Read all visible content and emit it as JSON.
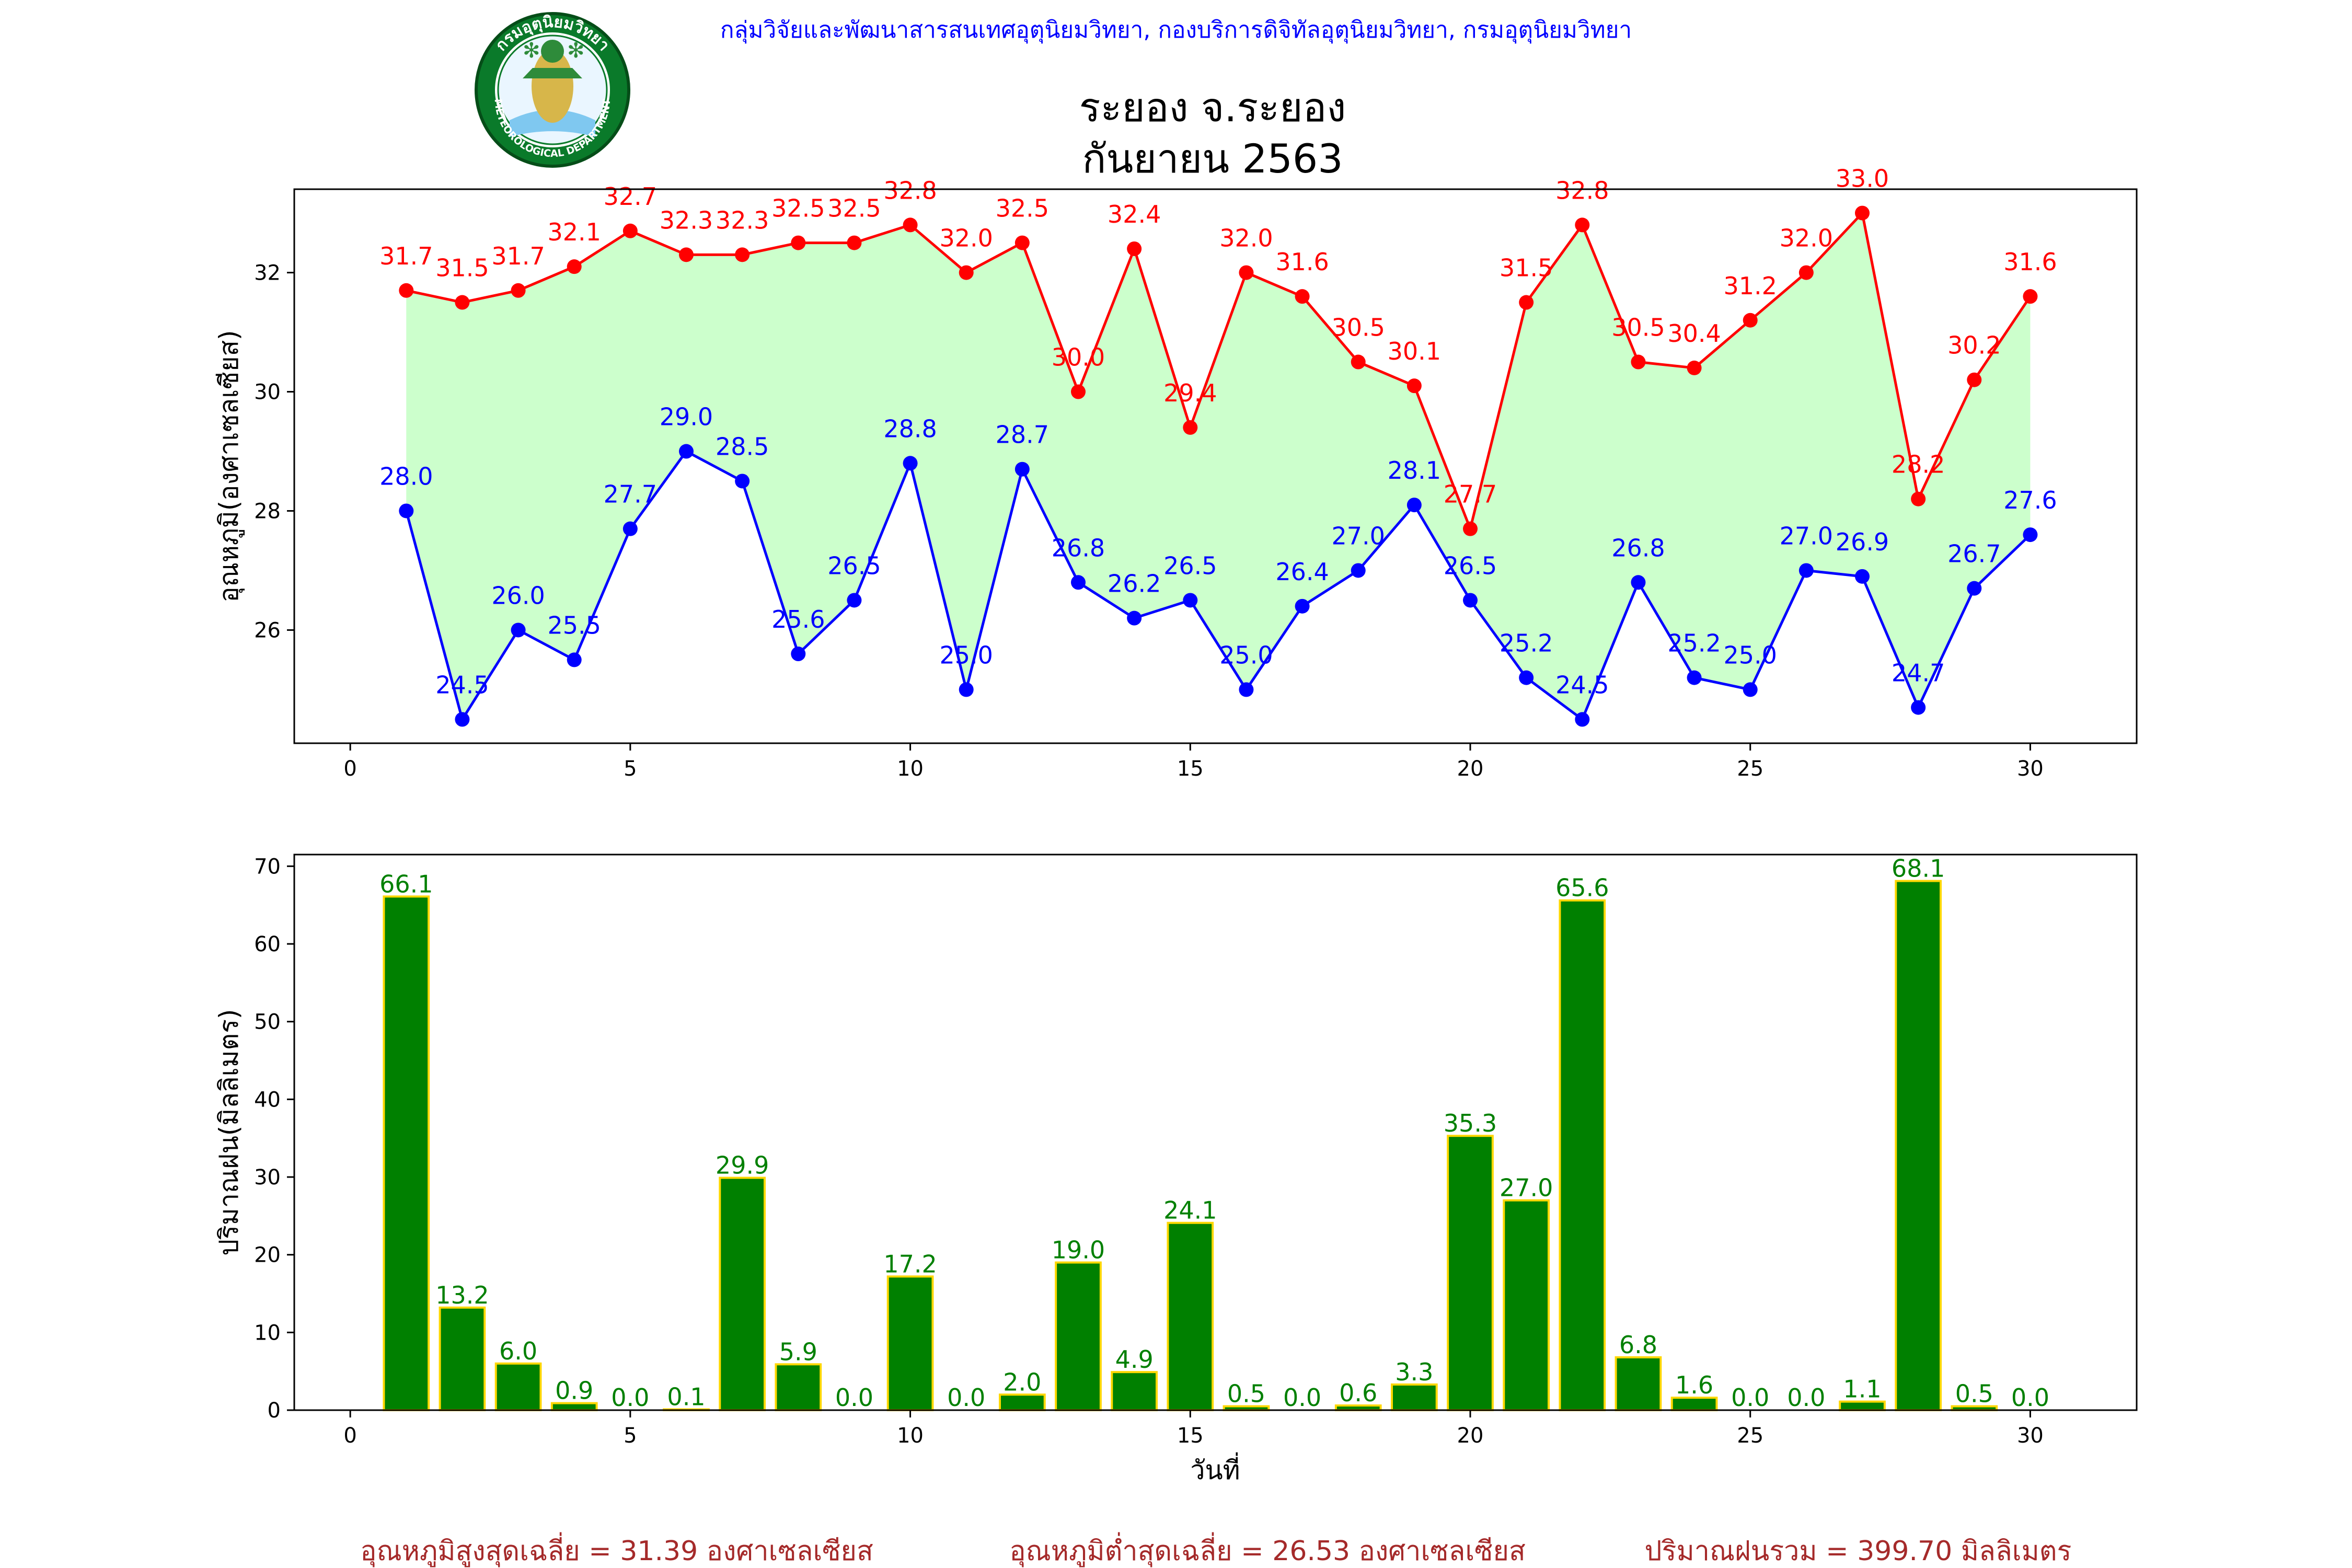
{
  "header": {
    "agency": "กลุ่มวิจัยและพัฒนาสารสนเทศอุตุนิยมวิทยา, กองบริการดิจิทัลอุตุนิยมวิทยา, กรมอุตุนิยมวิทยา",
    "title_line1": "ระยอง จ.ระยอง",
    "title_line2": "กันยายน 2563"
  },
  "logo": {
    "ring_text_top": "กรมอุตุนิยมวิทยา",
    "ring_text_bottom": "METEOROLOGICAL DEPARTMENT"
  },
  "colors": {
    "max_line": "#ff0000",
    "min_line": "#0000ff",
    "fill": "#ccffcc",
    "bar_fill": "#008000",
    "bar_edge": "#ffd700",
    "bar_label": "#008000",
    "footer": "#a52a2a",
    "agency": "#0000ff"
  },
  "chart_data": [
    {
      "type": "line",
      "ylabel": "อุณหภูมิ(องศาเซลเซียส)",
      "xlim": [
        -1,
        31.9
      ],
      "ylim": [
        24.1,
        33.4
      ],
      "xticks": [
        0,
        5,
        10,
        15,
        20,
        25,
        30
      ],
      "yticks": [
        26,
        28,
        30,
        32
      ],
      "x": [
        1,
        2,
        3,
        4,
        5,
        6,
        7,
        8,
        9,
        10,
        11,
        12,
        13,
        14,
        15,
        16,
        17,
        18,
        19,
        20,
        21,
        22,
        23,
        24,
        25,
        26,
        27,
        28,
        29,
        30
      ],
      "series": [
        {
          "values": [
            31.7,
            31.5,
            31.7,
            32.1,
            32.7,
            32.3,
            32.3,
            32.5,
            32.5,
            32.8,
            32.0,
            32.5,
            30.0,
            32.4,
            29.4,
            32.0,
            31.6,
            30.5,
            30.1,
            27.7,
            31.5,
            32.8,
            30.5,
            30.4,
            31.2,
            32.0,
            33.0,
            28.2,
            30.2,
            31.6
          ]
        },
        {
          "values": [
            28.0,
            24.5,
            26.0,
            25.5,
            27.7,
            29.0,
            28.5,
            25.6,
            26.5,
            28.8,
            25.0,
            28.7,
            26.8,
            26.2,
            26.5,
            25.0,
            26.4,
            27.0,
            28.1,
            26.5,
            25.2,
            24.5,
            26.8,
            25.2,
            25.0,
            27.0,
            26.9,
            24.7,
            26.7,
            27.6
          ]
        }
      ]
    },
    {
      "type": "bar",
      "ylabel": "ปริมาณฝน(มิลลิเมตร)",
      "xlabel": "วันที่",
      "xlim": [
        -1,
        31.9
      ],
      "ylim": [
        0,
        71.5
      ],
      "xticks": [
        0,
        5,
        10,
        15,
        20,
        25,
        30
      ],
      "yticks": [
        0,
        10,
        20,
        30,
        40,
        50,
        60,
        70
      ],
      "categories": [
        1,
        2,
        3,
        4,
        5,
        6,
        7,
        8,
        9,
        10,
        11,
        12,
        13,
        14,
        15,
        16,
        17,
        18,
        19,
        20,
        21,
        22,
        23,
        24,
        25,
        26,
        27,
        28,
        29,
        30
      ],
      "values": [
        66.1,
        13.2,
        6.0,
        0.9,
        0.0,
        0.1,
        29.9,
        5.9,
        0.0,
        17.2,
        0.0,
        2.0,
        19.0,
        4.9,
        24.1,
        0.5,
        0.0,
        0.6,
        3.3,
        35.3,
        27.0,
        65.6,
        6.8,
        1.6,
        0.0,
        0.0,
        1.1,
        68.1,
        0.5,
        0.0
      ]
    }
  ],
  "footer": {
    "avg_max": "อุณหภูมิสูงสุดเฉลี่ย = 31.39 องศาเซลเซียส",
    "avg_min": "อุณหภูมิต่ำสุดเฉลี่ย = 26.53 องศาเซลเซียส",
    "rain_total": "ปริมาณฝนรวม = 399.70 มิลลิเมตร"
  }
}
